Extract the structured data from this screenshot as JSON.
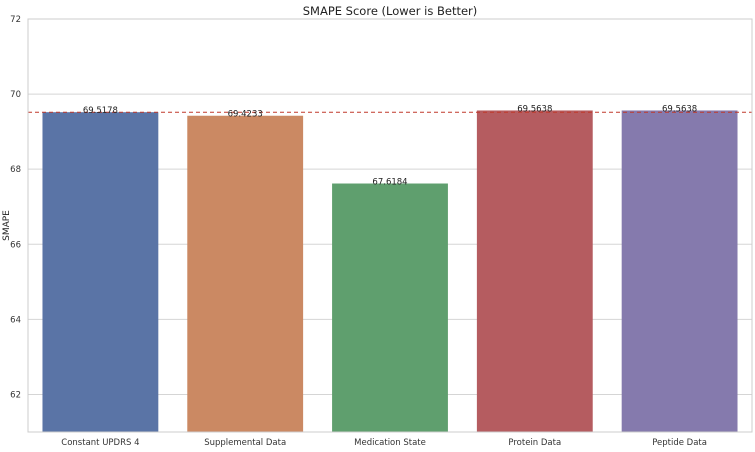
{
  "chart_data": {
    "type": "bar",
    "title": "SMAPE Score (Lower is Better)",
    "xlabel": "",
    "ylabel": "SMAPE",
    "ylim": [
      61,
      72
    ],
    "yticks": [
      62,
      64,
      66,
      68,
      70,
      72
    ],
    "categories": [
      "Constant UPDRS 4",
      "Supplemental Data",
      "Medication State",
      "Protein Data",
      "Peptide Data"
    ],
    "values": [
      69.5178,
      69.4233,
      67.6184,
      69.5638,
      69.5638
    ],
    "value_labels": [
      "69.5178",
      "69.4233",
      "67.6184",
      "69.5638",
      "69.5638"
    ],
    "bar_colors": [
      "#5a74a6",
      "#cb8963",
      "#5f9f6e",
      "#b55c60",
      "#857aad"
    ],
    "reference_line": {
      "value": 69.5178,
      "color": "#c0392b",
      "style": "dashed"
    },
    "grid": "horizontal",
    "legend": "none"
  }
}
